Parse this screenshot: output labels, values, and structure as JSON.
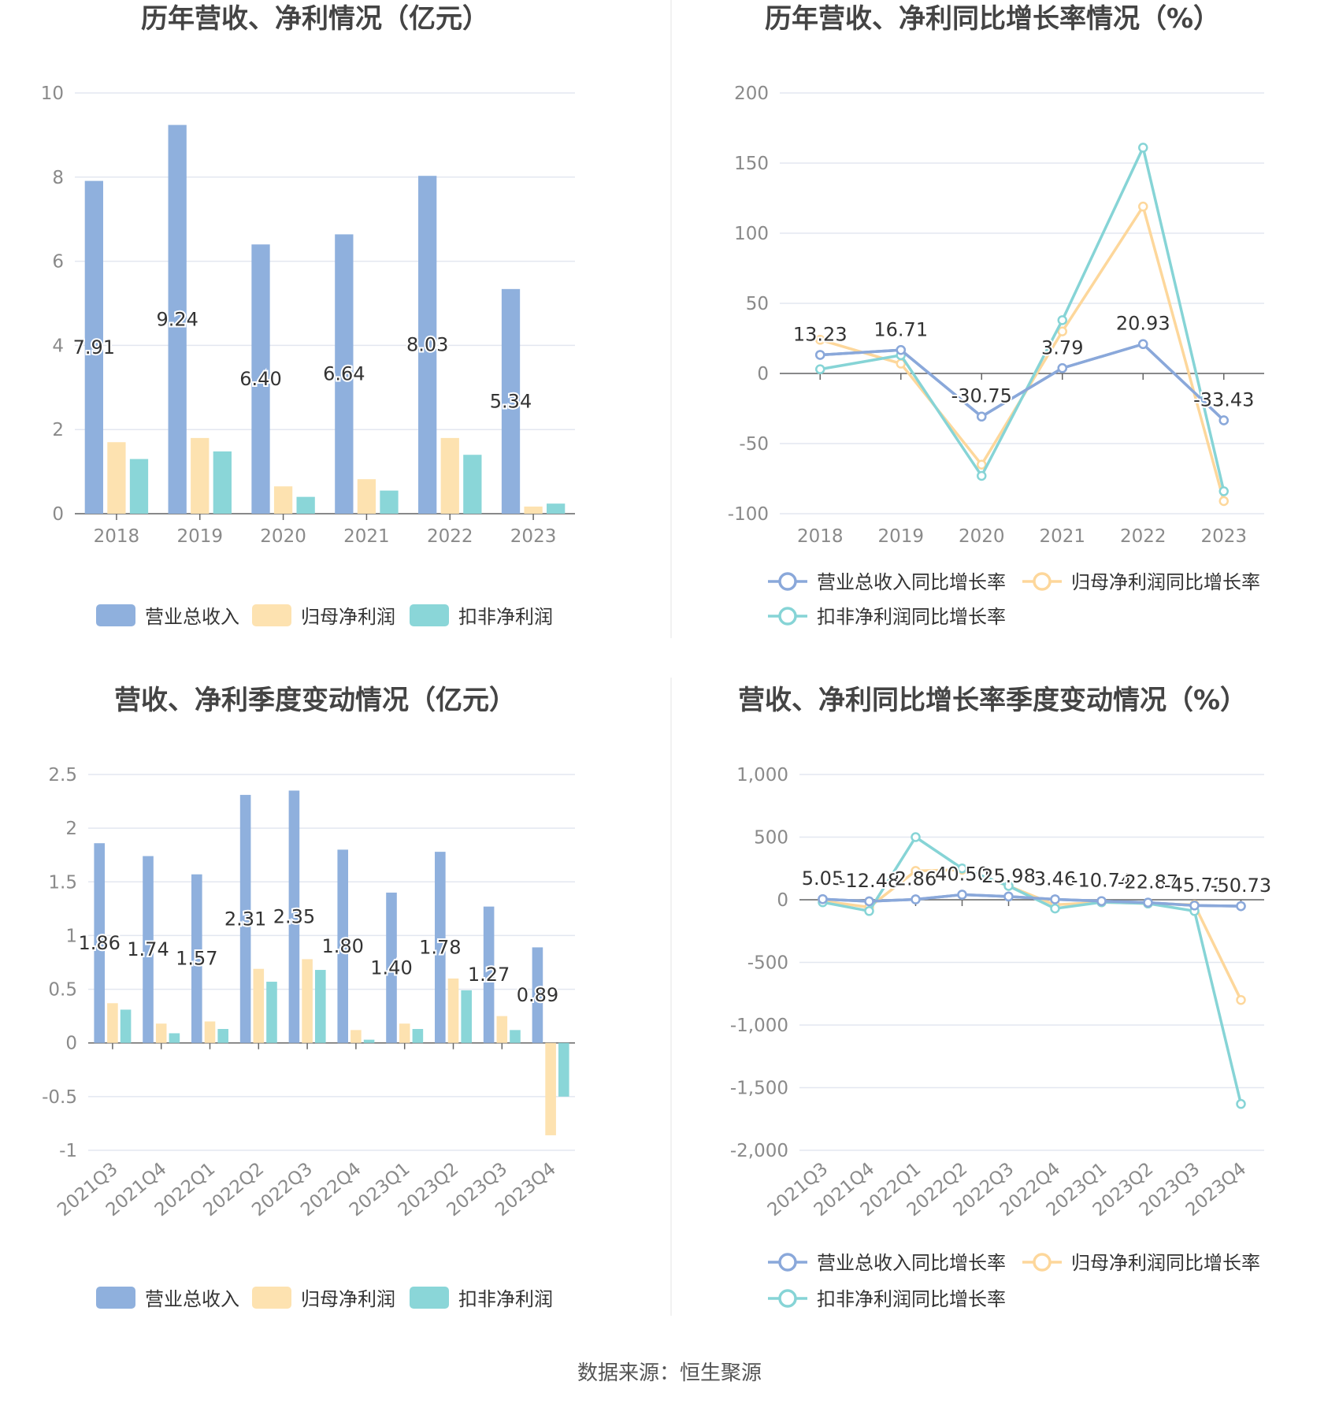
{
  "colors": {
    "revenue": "#8fb0dd",
    "net_profit": "#fde2b0",
    "deducted_profit": "#8ad6d8",
    "line_revenue": "#8aa8da",
    "line_net": "#fdd79b",
    "line_deducted": "#86d4d6",
    "grid": "#e3e7f0",
    "axis": "#666666",
    "tick": "#8a8a8a",
    "title": "#444444"
  },
  "source_text": "数据来源：恒生聚源",
  "chart_data": [
    {
      "id": "annual-values",
      "type": "bar",
      "title": "历年营收、净利情况（亿元）",
      "categories": [
        "2018",
        "2019",
        "2020",
        "2021",
        "2022",
        "2023"
      ],
      "ylim": [
        0,
        10
      ],
      "yticks": [
        "0",
        "2",
        "4",
        "6",
        "8",
        "10"
      ],
      "grid": true,
      "legend_position": "bottom",
      "labeled_series": 0,
      "series": [
        {
          "name": "营业总收入",
          "values": [
            7.91,
            9.24,
            6.4,
            6.64,
            8.03,
            5.34
          ],
          "labels": [
            "7.91",
            "9.24",
            "6.40",
            "6.64",
            "8.03",
            "5.34"
          ]
        },
        {
          "name": "归母净利润",
          "values": [
            1.7,
            1.8,
            0.65,
            0.82,
            1.8,
            0.17
          ]
        },
        {
          "name": "扣非净利润",
          "values": [
            1.3,
            1.48,
            0.4,
            0.55,
            1.4,
            0.24
          ]
        }
      ]
    },
    {
      "id": "annual-growth",
      "type": "line",
      "title": "历年营收、净利同比增长率情况（%）",
      "categories": [
        "2018",
        "2019",
        "2020",
        "2021",
        "2022",
        "2023"
      ],
      "ylim": [
        -100,
        200
      ],
      "yticks": [
        "-100",
        "-50",
        "0",
        "50",
        "100",
        "150",
        "200"
      ],
      "grid": true,
      "legend_position": "bottom",
      "labeled_series": 0,
      "series": [
        {
          "name": "营业总收入同比增长率",
          "values": [
            13.23,
            16.71,
            -30.75,
            3.79,
            20.93,
            -33.43
          ],
          "labels": [
            "13.23",
            "16.71",
            "-30.75",
            "3.79",
            "20.93",
            "-33.43"
          ]
        },
        {
          "name": "归母净利润同比增长率",
          "values": [
            24,
            7,
            -65,
            30,
            119,
            -91
          ]
        },
        {
          "name": "扣非净利润同比增长率",
          "values": [
            3,
            13,
            -73,
            38,
            161,
            -84
          ]
        }
      ]
    },
    {
      "id": "quarterly-values",
      "type": "bar",
      "title": "营收、净利季度变动情况（亿元）",
      "categories": [
        "2021Q3",
        "2021Q4",
        "2022Q1",
        "2022Q2",
        "2022Q3",
        "2022Q4",
        "2023Q1",
        "2023Q2",
        "2023Q3",
        "2023Q4"
      ],
      "ylim": [
        -1,
        2.5
      ],
      "yticks": [
        "-1",
        "-0.5",
        "0",
        "0.5",
        "1",
        "1.5",
        "2",
        "2.5"
      ],
      "grid": true,
      "legend_position": "bottom",
      "labeled_series": 0,
      "series": [
        {
          "name": "营业总收入",
          "values": [
            1.86,
            1.74,
            1.57,
            2.31,
            2.35,
            1.8,
            1.4,
            1.78,
            1.27,
            0.89
          ],
          "labels": [
            "1.86",
            "1.74",
            "1.57",
            "2.31",
            "2.35",
            "1.80",
            "1.40",
            "1.78",
            "1.27",
            "0.89"
          ]
        },
        {
          "name": "归母净利润",
          "values": [
            0.37,
            0.18,
            0.2,
            0.69,
            0.78,
            0.12,
            0.18,
            0.6,
            0.25,
            -0.86
          ]
        },
        {
          "name": "扣非净利润",
          "values": [
            0.31,
            0.09,
            0.13,
            0.57,
            0.68,
            0.03,
            0.13,
            0.49,
            0.12,
            -0.5
          ]
        }
      ]
    },
    {
      "id": "quarterly-growth",
      "type": "line",
      "title": "营收、净利同比增长率季度变动情况（%）",
      "categories": [
        "2021Q3",
        "2021Q4",
        "2022Q1",
        "2022Q2",
        "2022Q3",
        "2022Q4",
        "2023Q1",
        "2023Q2",
        "2023Q3",
        "2023Q4"
      ],
      "ylim": [
        -2000,
        1000
      ],
      "yticks": [
        "-2,000",
        "-1,500",
        "-1,000",
        "-500",
        "0",
        "500",
        "1,000"
      ],
      "grid": true,
      "legend_position": "bottom",
      "labeled_series": 0,
      "series": [
        {
          "name": "营业总收入同比增长率",
          "values": [
            5.05,
            -12.48,
            2.86,
            40.5,
            25.98,
            3.46,
            -10.74,
            -22.87,
            -45.72,
            -50.73
          ],
          "labels": [
            "5.05",
            "-12.48",
            "2.86",
            "40.50",
            "25.98",
            "3.46",
            "-10.74",
            "-22.87",
            "-45.72",
            "-50.73"
          ]
        },
        {
          "name": "归母净利润同比增长率",
          "values": [
            -10,
            -60,
            230,
            240,
            110,
            -40,
            -20,
            -30,
            -40,
            -800
          ]
        },
        {
          "name": "扣非净利润同比增长率",
          "values": [
            -20,
            -90,
            500,
            250,
            110,
            -70,
            -20,
            -30,
            -90,
            -1630
          ]
        }
      ]
    }
  ]
}
